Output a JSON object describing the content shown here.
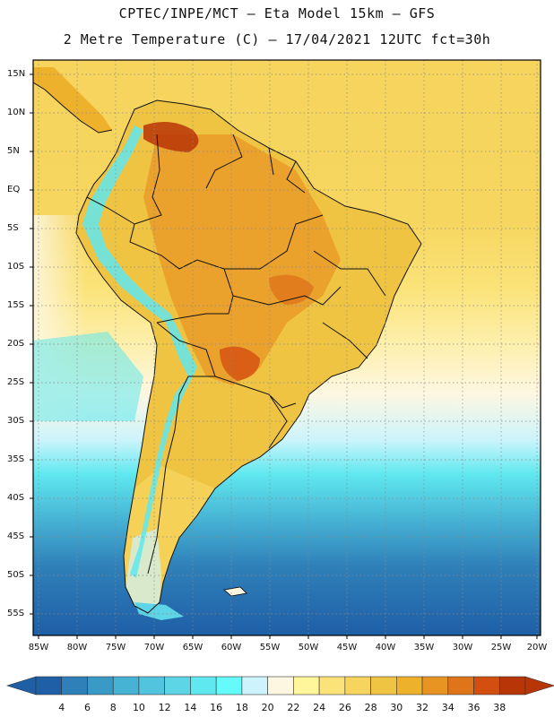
{
  "header": {
    "line1": "CPTEC/INPE/MCT –  Eta Model 15km – GFS",
    "line2": "2 Metre Temperature (C) – 17/04/2021 12UTC fct=30h"
  },
  "map": {
    "lat_labels": [
      "15N",
      "10N",
      "5N",
      "EQ",
      "5S",
      "10S",
      "15S",
      "20S",
      "25S",
      "30S",
      "35S",
      "40S",
      "45S",
      "50S",
      "55S"
    ],
    "lon_labels": [
      "85W",
      "80W",
      "75W",
      "70W",
      "65W",
      "60W",
      "55W",
      "50W",
      "45W",
      "40W",
      "35W",
      "30W",
      "25W",
      "20W"
    ]
  },
  "colorbar": {
    "labels": [
      "4",
      "6",
      "8",
      "10",
      "12",
      "14",
      "16",
      "18",
      "20",
      "22",
      "24",
      "26",
      "28",
      "30",
      "32",
      "34",
      "36",
      "38"
    ],
    "colors": [
      "#1f5fa6",
      "#2f80b9",
      "#3a9ac6",
      "#46b2d4",
      "#52c4de",
      "#5dd5e6",
      "#5fe8ef",
      "#66fbfb",
      "#cdf4fc",
      "#fdf7e2",
      "#fff59a",
      "#fbe37a",
      "#f6d45d",
      "#f0c443",
      "#eeb12c",
      "#e89423",
      "#df7419",
      "#d34f0f",
      "#b83507"
    ]
  }
}
